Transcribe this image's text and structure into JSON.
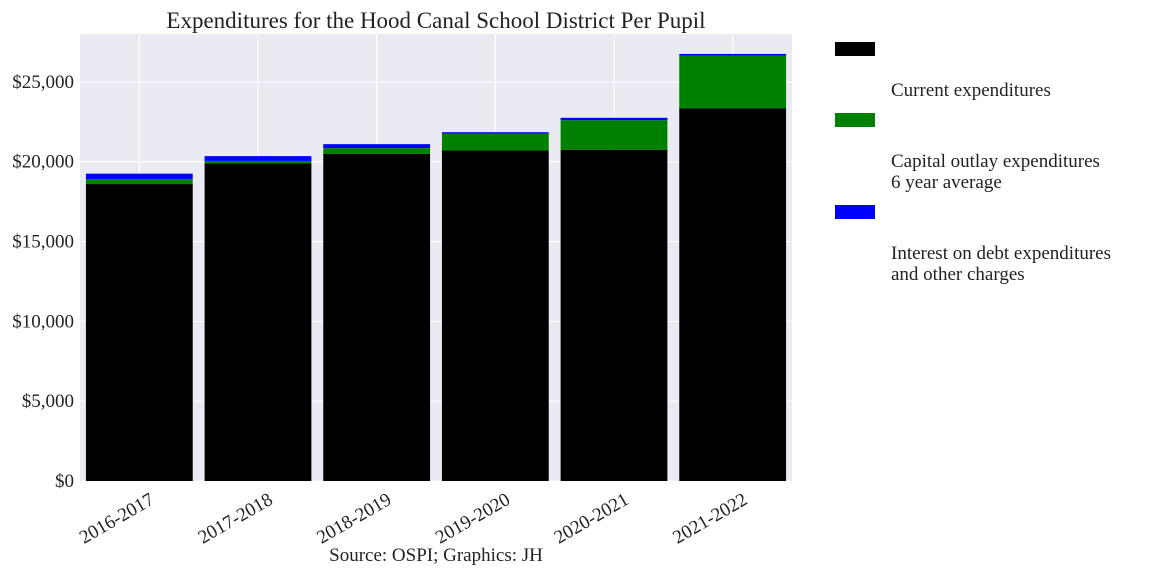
{
  "chart_data": {
    "type": "bar",
    "stacked": true,
    "title": "Expenditures for the Hood Canal School District Per Pupil",
    "caption": "Source: OSPI; Graphics: JH",
    "xlabel": "",
    "ylabel": "",
    "categories": [
      "2016-2017",
      "2017-2018",
      "2018-2019",
      "2019-2020",
      "2020-2021",
      "2021-2022"
    ],
    "ylim": [
      0,
      28000
    ],
    "yticks": [
      0,
      5000,
      10000,
      15000,
      20000,
      25000
    ],
    "ytick_labels": [
      "$0",
      "$5,000",
      "$10,000",
      "$15,000",
      "$20,000",
      "$25,000"
    ],
    "grid": true,
    "legend_position": "outside-right",
    "series": [
      {
        "name": "Current expenditures",
        "color": "#000000",
        "values": [
          18600,
          19900,
          20500,
          20700,
          20750,
          23350
        ]
      },
      {
        "name": "Capital outlay expenditures\n6 year average",
        "color": "#008000",
        "values": [
          300,
          150,
          350,
          1050,
          1850,
          3300
        ]
      },
      {
        "name": "Interest on debt expenditures\nand other charges",
        "color": "#0000ff",
        "values": [
          350,
          300,
          250,
          100,
          150,
          100
        ]
      }
    ]
  }
}
